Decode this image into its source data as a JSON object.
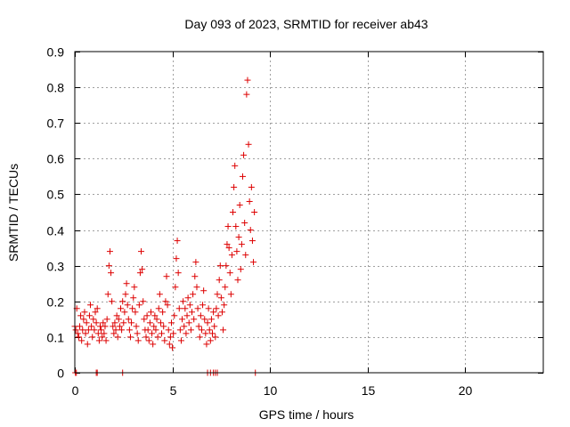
{
  "chart_data": {
    "type": "scatter",
    "title": "Day 093 of 2023, SRMTID for receiver ab43",
    "xlabel": "GPS time / hours",
    "ylabel": "SRMTID / TECUs",
    "xlim": [
      0,
      24
    ],
    "ylim": [
      0,
      0.9
    ],
    "xticks": [
      0,
      5,
      10,
      15,
      20
    ],
    "xtick_labels": [
      "0",
      "5",
      "10",
      "15",
      "20"
    ],
    "yticks": [
      0,
      0.1,
      0.2,
      0.3,
      0.4,
      0.5,
      0.6,
      0.7,
      0.8,
      0.9
    ],
    "ytick_labels": [
      "0",
      "0.1",
      "0.2",
      "0.3",
      "0.4",
      "0.5",
      "0.6",
      "0.7",
      "0.8",
      "0.9"
    ],
    "grid": true,
    "marker": "+",
    "color": "#dd0000",
    "series": [
      {
        "name": "SRMTID",
        "points": [
          [
            0.0,
            0.13
          ],
          [
            0.05,
            0.12
          ],
          [
            0.1,
            0.18
          ],
          [
            0.15,
            0.11
          ],
          [
            0.2,
            0.1
          ],
          [
            0.25,
            0.13
          ],
          [
            0.3,
            0.16
          ],
          [
            0.35,
            0.09
          ],
          [
            0.4,
            0.12
          ],
          [
            0.45,
            0.15
          ],
          [
            0.5,
            0.17
          ],
          [
            0.55,
            0.11
          ],
          [
            0.6,
            0.14
          ],
          [
            0.65,
            0.08
          ],
          [
            0.7,
            0.12
          ],
          [
            0.75,
            0.16
          ],
          [
            0.8,
            0.19
          ],
          [
            0.85,
            0.13
          ],
          [
            0.9,
            0.1
          ],
          [
            0.95,
            0.15
          ],
          [
            1.0,
            0.12
          ],
          [
            1.05,
            0.17
          ],
          [
            1.1,
            0.14
          ],
          [
            1.15,
            0.18
          ],
          [
            1.2,
            0.11
          ],
          [
            1.25,
            0.09
          ],
          [
            1.3,
            0.13
          ],
          [
            1.35,
            0.12
          ],
          [
            1.4,
            0.1
          ],
          [
            1.45,
            0.14
          ],
          [
            1.5,
            0.11
          ],
          [
            1.55,
            0.13
          ],
          [
            1.6,
            0.09
          ],
          [
            1.65,
            0.15
          ],
          [
            1.7,
            0.22
          ],
          [
            1.75,
            0.3
          ],
          [
            1.8,
            0.34
          ],
          [
            1.85,
            0.28
          ],
          [
            1.9,
            0.2
          ],
          [
            1.95,
            0.13
          ],
          [
            2.0,
            0.11
          ],
          [
            2.05,
            0.14
          ],
          [
            2.1,
            0.12
          ],
          [
            2.15,
            0.16
          ],
          [
            2.2,
            0.1
          ],
          [
            2.25,
            0.15
          ],
          [
            2.3,
            0.13
          ],
          [
            2.35,
            0.18
          ],
          [
            2.4,
            0.12
          ],
          [
            2.45,
            0.2
          ],
          [
            2.5,
            0.14
          ],
          [
            2.55,
            0.17
          ],
          [
            2.6,
            0.22
          ],
          [
            2.65,
            0.25
          ],
          [
            2.7,
            0.19
          ],
          [
            2.75,
            0.15
          ],
          [
            2.8,
            0.12
          ],
          [
            2.85,
            0.1
          ],
          [
            2.9,
            0.14
          ],
          [
            2.95,
            0.18
          ],
          [
            3.0,
            0.21
          ],
          [
            3.05,
            0.24
          ],
          [
            3.1,
            0.17
          ],
          [
            3.15,
            0.13
          ],
          [
            3.2,
            0.11
          ],
          [
            3.25,
            0.09
          ],
          [
            3.3,
            0.19
          ],
          [
            3.35,
            0.28
          ],
          [
            3.4,
            0.34
          ],
          [
            3.45,
            0.29
          ],
          [
            3.5,
            0.2
          ],
          [
            3.55,
            0.15
          ],
          [
            3.6,
            0.12
          ],
          [
            3.65,
            0.1
          ],
          [
            3.7,
            0.16
          ],
          [
            3.75,
            0.12
          ],
          [
            3.8,
            0.09
          ],
          [
            3.85,
            0.14
          ],
          [
            3.9,
            0.17
          ],
          [
            3.95,
            0.11
          ],
          [
            4.0,
            0.08
          ],
          [
            4.05,
            0.13
          ],
          [
            4.1,
            0.16
          ],
          [
            4.15,
            0.12
          ],
          [
            4.2,
            0.15
          ],
          [
            4.25,
            0.1
          ],
          [
            4.3,
            0.18
          ],
          [
            4.35,
            0.22
          ],
          [
            4.4,
            0.14
          ],
          [
            4.45,
            0.11
          ],
          [
            4.5,
            0.17
          ],
          [
            4.55,
            0.13
          ],
          [
            4.6,
            0.09
          ],
          [
            4.65,
            0.2
          ],
          [
            4.7,
            0.27
          ],
          [
            4.75,
            0.19
          ],
          [
            4.8,
            0.12
          ],
          [
            4.85,
            0.08
          ],
          [
            4.9,
            0.1
          ],
          [
            4.95,
            0.14
          ],
          [
            5.0,
            0.07
          ],
          [
            5.05,
            0.11
          ],
          [
            5.1,
            0.16
          ],
          [
            5.15,
            0.24
          ],
          [
            5.2,
            0.32
          ],
          [
            5.25,
            0.37
          ],
          [
            5.3,
            0.28
          ],
          [
            5.35,
            0.18
          ],
          [
            5.4,
            0.12
          ],
          [
            5.45,
            0.09
          ],
          [
            5.5,
            0.15
          ],
          [
            5.55,
            0.2
          ],
          [
            5.6,
            0.13
          ],
          [
            5.65,
            0.18
          ],
          [
            5.7,
            0.11
          ],
          [
            5.75,
            0.16
          ],
          [
            5.8,
            0.21
          ],
          [
            5.85,
            0.14
          ],
          [
            5.9,
            0.19
          ],
          [
            5.95,
            0.12
          ],
          [
            6.0,
            0.17
          ],
          [
            6.05,
            0.22
          ],
          [
            6.1,
            0.15
          ],
          [
            6.15,
            0.27
          ],
          [
            6.2,
            0.31
          ],
          [
            6.25,
            0.24
          ],
          [
            6.3,
            0.18
          ],
          [
            6.35,
            0.13
          ],
          [
            6.4,
            0.1
          ],
          [
            6.45,
            0.16
          ],
          [
            6.5,
            0.12
          ],
          [
            6.55,
            0.19
          ],
          [
            6.6,
            0.23
          ],
          [
            6.65,
            0.15
          ],
          [
            6.7,
            0.11
          ],
          [
            6.75,
            0.08
          ],
          [
            6.8,
            0.14
          ],
          [
            6.85,
            0.18
          ],
          [
            6.9,
            0.12
          ],
          [
            6.95,
            0.09
          ],
          [
            7.0,
            0.15
          ],
          [
            7.05,
            0.11
          ],
          [
            7.1,
            0.17
          ],
          [
            7.15,
            0.13
          ],
          [
            7.2,
            0.1
          ],
          [
            7.25,
            0.18
          ],
          [
            7.3,
            0.22
          ],
          [
            7.35,
            0.16
          ],
          [
            7.4,
            0.26
          ],
          [
            7.45,
            0.3
          ],
          [
            7.5,
            0.21
          ],
          [
            7.55,
            0.17
          ],
          [
            7.6,
            0.12
          ],
          [
            7.65,
            0.19
          ],
          [
            7.7,
            0.24
          ],
          [
            7.75,
            0.3
          ],
          [
            7.8,
            0.36
          ],
          [
            7.85,
            0.41
          ],
          [
            7.9,
            0.35
          ],
          [
            7.95,
            0.28
          ],
          [
            8.0,
            0.22
          ],
          [
            8.05,
            0.33
          ],
          [
            8.1,
            0.45
          ],
          [
            8.15,
            0.52
          ],
          [
            8.2,
            0.58
          ],
          [
            8.25,
            0.41
          ],
          [
            8.3,
            0.34
          ],
          [
            8.35,
            0.26
          ],
          [
            8.4,
            0.38
          ],
          [
            8.45,
            0.47
          ],
          [
            8.5,
            0.29
          ],
          [
            8.55,
            0.36
          ],
          [
            8.6,
            0.55
          ],
          [
            8.65,
            0.61
          ],
          [
            8.7,
            0.42
          ],
          [
            8.75,
            0.33
          ],
          [
            8.8,
            0.78
          ],
          [
            8.85,
            0.82
          ],
          [
            8.9,
            0.64
          ],
          [
            8.95,
            0.48
          ],
          [
            9.0,
            0.4
          ],
          [
            9.05,
            0.52
          ],
          [
            9.1,
            0.37
          ],
          [
            9.15,
            0.31
          ],
          [
            9.2,
            0.45
          ]
        ]
      }
    ],
    "baseline_points": [
      0.03,
      0.08,
      1.1,
      1.15,
      2.45,
      6.8,
      6.95,
      7.1,
      7.2,
      7.3,
      9.25
    ]
  }
}
